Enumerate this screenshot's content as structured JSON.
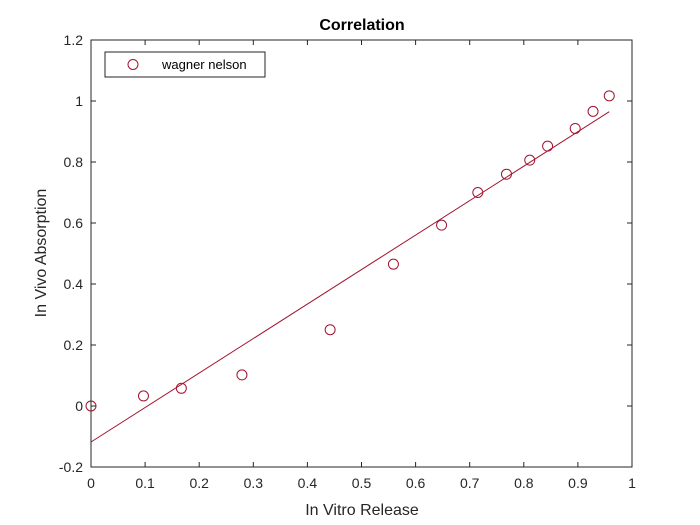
{
  "chart_data": {
    "type": "scatter",
    "title": "Correlation",
    "xlabel": "In Vitro Release",
    "ylabel": "In Vivo Absorption",
    "xlim": [
      0,
      1
    ],
    "ylim": [
      -0.2,
      1.2
    ],
    "xticks": [
      0,
      0.1,
      0.2,
      0.3,
      0.4,
      0.5,
      0.6,
      0.7,
      0.8,
      0.9,
      1
    ],
    "yticks": [
      -0.2,
      0,
      0.2,
      0.4,
      0.6,
      0.8,
      1,
      1.2
    ],
    "xtick_labels": [
      "0",
      "0.1",
      "0.2",
      "0.3",
      "0.4",
      "0.5",
      "0.6",
      "0.7",
      "0.8",
      "0.9",
      "1"
    ],
    "ytick_labels": [
      "-0.2",
      "0",
      "0.2",
      "0.4",
      "0.6",
      "0.8",
      "1",
      "1.2"
    ],
    "grid": false,
    "legend_position": "top-left",
    "series": [
      {
        "name": "wagner nelson",
        "marker": "circle-open",
        "color": "#a2142f",
        "x": [
          0,
          0.097,
          0.167,
          0.279,
          0.442,
          0.559,
          0.648,
          0.715,
          0.768,
          0.811,
          0.844,
          0.895,
          0.928,
          0.958
        ],
        "y": [
          0,
          0.033,
          0.058,
          0.102,
          0.25,
          0.465,
          0.593,
          0.7,
          0.76,
          0.806,
          0.852,
          0.91,
          0.966,
          1.017
        ]
      }
    ],
    "fit_line": {
      "color": "#a2142f",
      "x": [
        0,
        0.958
      ],
      "y": [
        -0.118,
        0.965
      ]
    }
  }
}
